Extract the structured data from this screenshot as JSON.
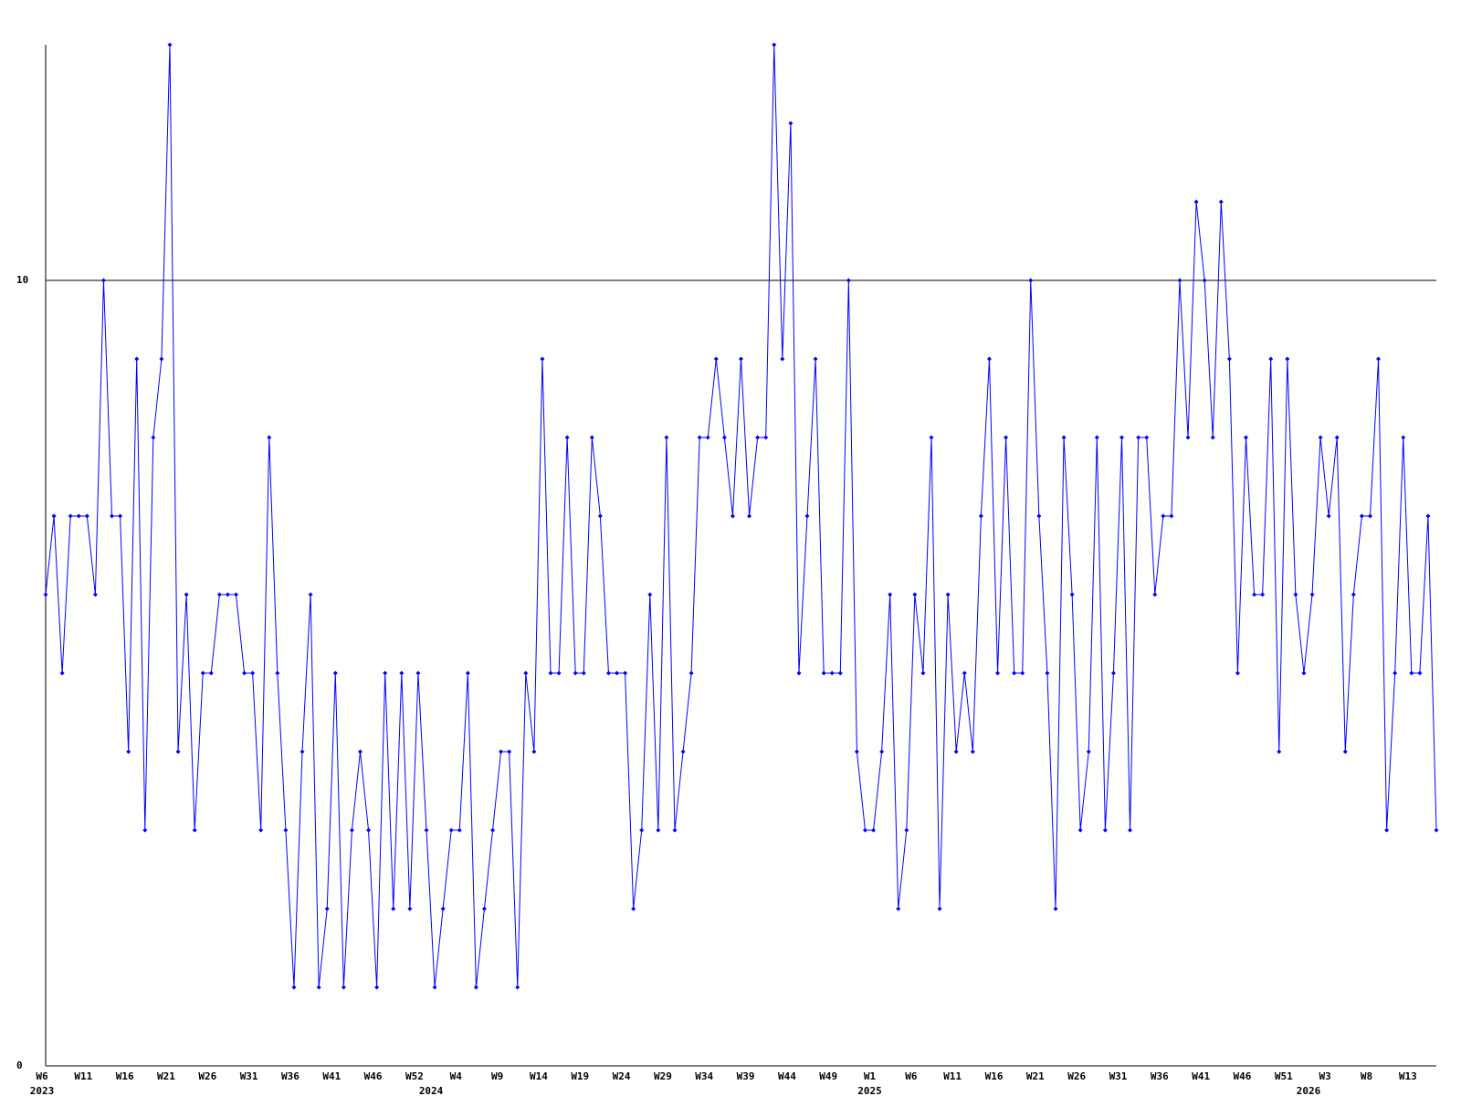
{
  "chart_data": {
    "type": "line",
    "categories": [
      "W6",
      null,
      null,
      null,
      null,
      "W11",
      null,
      null,
      null,
      null,
      "W16",
      null,
      null,
      null,
      null,
      "W21",
      null,
      null,
      null,
      null,
      "W26",
      null,
      null,
      null,
      null,
      "W31",
      null,
      null,
      null,
      null,
      "W36",
      null,
      null,
      null,
      null,
      "W41",
      null,
      null,
      null,
      null,
      "W46",
      null,
      null,
      null,
      null,
      "W52",
      null,
      null,
      null,
      null,
      "W4",
      null,
      null,
      null,
      null,
      "W9",
      null,
      null,
      null,
      null,
      "W14",
      null,
      null,
      null,
      null,
      "W19",
      null,
      null,
      null,
      null,
      "W24",
      null,
      null,
      null,
      null,
      "W29",
      null,
      null,
      null,
      null,
      "W34",
      null,
      null,
      null,
      null,
      "W39",
      null,
      null,
      null,
      null,
      "W44",
      null,
      null,
      null,
      null,
      "W49",
      null,
      null,
      null,
      null,
      "W1",
      null,
      null,
      null,
      null,
      "W6",
      null,
      null,
      null,
      null,
      "W11",
      null,
      null,
      null,
      null,
      "W16",
      null,
      null,
      null,
      null,
      "W21",
      null,
      null,
      null,
      null,
      "W26",
      null,
      null,
      null,
      null,
      "W31",
      null,
      null,
      null,
      null,
      "W36",
      null,
      null,
      null,
      null,
      "W41",
      null,
      null,
      null,
      null,
      "W46",
      null,
      null,
      null,
      null,
      "W51",
      null,
      null,
      null,
      null,
      "W3",
      null,
      null,
      null,
      null,
      "W8",
      null,
      null,
      null,
      null,
      "W13",
      null,
      null,
      null
    ],
    "years": [
      "2023",
      null,
      null,
      null,
      null,
      null,
      null,
      null,
      null,
      null,
      null,
      null,
      null,
      null,
      null,
      null,
      null,
      null,
      null,
      null,
      null,
      null,
      null,
      null,
      null,
      null,
      null,
      null,
      null,
      null,
      null,
      null,
      null,
      null,
      null,
      null,
      null,
      null,
      null,
      null,
      null,
      null,
      null,
      null,
      null,
      null,
      null,
      "2024",
      null,
      null,
      null,
      null,
      null,
      null,
      null,
      null,
      null,
      null,
      null,
      null,
      null,
      null,
      null,
      null,
      null,
      null,
      null,
      null,
      null,
      null,
      null,
      null,
      null,
      null,
      null,
      null,
      null,
      null,
      null,
      null,
      null,
      null,
      null,
      null,
      null,
      null,
      null,
      null,
      null,
      null,
      null,
      null,
      null,
      null,
      null,
      null,
      null,
      null,
      null,
      null,
      "2025",
      null,
      null,
      null,
      null,
      null,
      null,
      null,
      null,
      null,
      null,
      null,
      null,
      null,
      null,
      null,
      null,
      null,
      null,
      null,
      null,
      null,
      null,
      null,
      null,
      null,
      null,
      null,
      null,
      null,
      null,
      null,
      null,
      null,
      null,
      null,
      null,
      null,
      null,
      null,
      null,
      null,
      null,
      null,
      null,
      null,
      null,
      null,
      null,
      null,
      null,
      null,
      null,
      "2026",
      null,
      null,
      null,
      null,
      null,
      null,
      null,
      null,
      null,
      null,
      null,
      null,
      null,
      null,
      null
    ],
    "values": [
      6,
      7,
      5,
      7,
      7,
      7,
      6,
      10,
      7,
      7,
      4,
      9,
      3,
      8,
      9,
      13,
      4,
      6,
      3,
      5,
      5,
      6,
      6,
      6,
      5,
      5,
      3,
      8,
      5,
      3,
      1,
      4,
      6,
      1,
      2,
      5,
      1,
      3,
      4,
      3,
      1,
      5,
      2,
      5,
      2,
      5,
      3,
      1,
      2,
      3,
      3,
      5,
      1,
      2,
      3,
      4,
      4,
      1,
      5,
      4,
      9,
      5,
      5,
      8,
      5,
      5,
      8,
      7,
      5,
      5,
      5,
      2,
      3,
      6,
      3,
      8,
      3,
      4,
      5,
      8,
      8,
      9,
      8,
      7,
      9,
      7,
      8,
      8,
      13,
      9,
      12,
      5,
      7,
      9,
      5,
      5,
      5,
      10,
      4,
      3,
      3,
      4,
      6,
      2,
      3,
      6,
      5,
      8,
      2,
      6,
      4,
      5,
      4,
      7,
      9,
      5,
      8,
      5,
      5,
      10,
      7,
      5,
      2,
      8,
      6,
      3,
      4,
      8,
      3,
      5,
      8,
      3,
      8,
      8,
      6,
      7,
      7,
      10,
      8,
      11,
      10,
      8,
      11,
      9,
      5,
      8,
      6,
      6,
      9,
      4,
      9,
      6,
      5,
      6,
      8,
      7,
      8,
      4,
      6,
      7,
      7,
      9,
      3,
      5,
      8,
      5,
      5,
      7,
      3
    ],
    "color": "#0000ff",
    "ylim": [
      0,
      13
    ],
    "yticks": [
      0,
      10
    ],
    "grid": true
  }
}
